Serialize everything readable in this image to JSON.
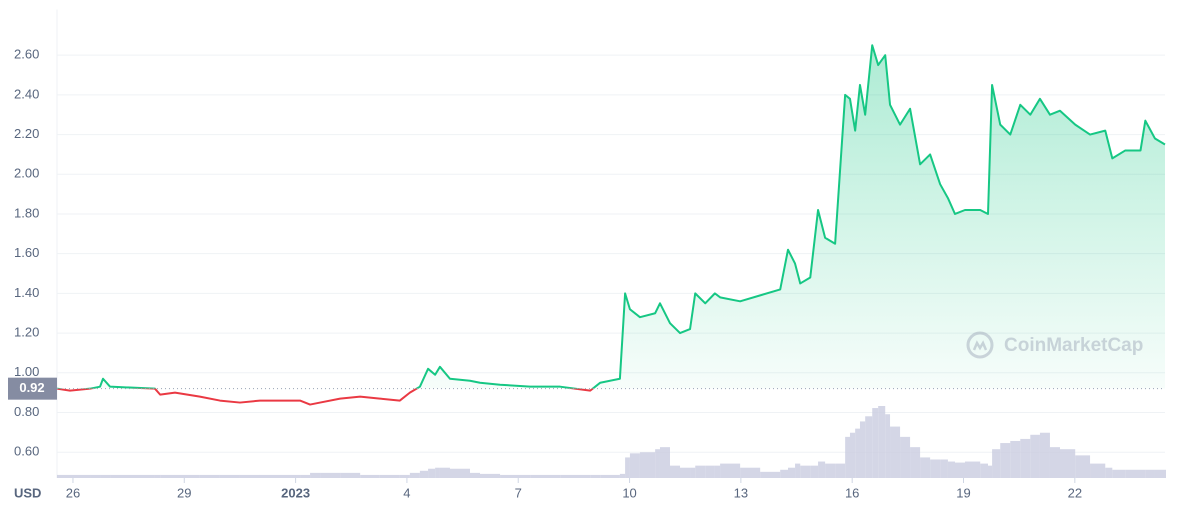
{
  "chart_data": {
    "type": "line",
    "color": "#16c784",
    "down_color": "#ea3943",
    "volume_color": "#c9cce0",
    "grid": true,
    "currency": "USD",
    "watermark": "CoinMarketCap",
    "baseline": {
      "value": 0.92,
      "label": "0.92"
    },
    "xlim": [
      -0.43,
      29.43
    ],
    "xticks": [
      {
        "value": 0,
        "label": "26"
      },
      {
        "value": 3,
        "label": "29"
      },
      {
        "value": 6,
        "label": "2023"
      },
      {
        "value": 9,
        "label": "4"
      },
      {
        "value": 12,
        "label": "7"
      },
      {
        "value": 15,
        "label": "10"
      },
      {
        "value": 18,
        "label": "13"
      },
      {
        "value": 21,
        "label": "16"
      },
      {
        "value": 24,
        "label": "19"
      },
      {
        "value": 27,
        "label": "22"
      }
    ],
    "ylim": [
      0.47,
      2.83
    ],
    "yticks": [
      {
        "value": 0.6,
        "label": "0.60"
      },
      {
        "value": 0.8,
        "label": "0.80"
      },
      {
        "value": 1.0,
        "label": "1.00"
      },
      {
        "value": 1.2,
        "label": "1.20"
      },
      {
        "value": 1.4,
        "label": "1.40"
      },
      {
        "value": 1.6,
        "label": "1.60"
      },
      {
        "value": 1.8,
        "label": "1.80"
      },
      {
        "value": 2.0,
        "label": "2.00"
      },
      {
        "value": 2.2,
        "label": "2.20"
      },
      {
        "value": 2.4,
        "label": "2.40"
      },
      {
        "value": 2.6,
        "label": "2.60"
      }
    ],
    "x": [
      -0.43,
      -0.08,
      0.46,
      0.73,
      0.81,
      1.0,
      2.21,
      2.35,
      2.75,
      3.42,
      3.96,
      4.5,
      5.04,
      6.12,
      6.39,
      6.66,
      7.2,
      7.74,
      8.27,
      8.81,
      9.08,
      9.35,
      9.57,
      9.76,
      9.89,
      10.16,
      10.7,
      10.97,
      11.51,
      12.32,
      13.13,
      13.94,
      14.21,
      14.74,
      14.88,
      15.01,
      15.28,
      15.69,
      15.82,
      16.09,
      16.36,
      16.63,
      16.77,
      17.04,
      17.3,
      17.44,
      17.98,
      18.52,
      19.06,
      19.27,
      19.46,
      19.6,
      19.87,
      20.08,
      20.27,
      20.54,
      20.81,
      20.94,
      21.08,
      21.21,
      21.35,
      21.54,
      21.7,
      21.89,
      22.02,
      22.29,
      22.56,
      22.83,
      23.1,
      23.37,
      23.58,
      23.77,
      24.04,
      24.45,
      24.66,
      24.77,
      24.99,
      25.26,
      25.53,
      25.8,
      26.06,
      26.33,
      26.6,
      27.01,
      27.41,
      27.82,
      28.01,
      28.36,
      28.77,
      28.9,
      29.16,
      29.43
    ],
    "values": [
      0.92,
      0.91,
      0.92,
      0.93,
      0.97,
      0.93,
      0.92,
      0.89,
      0.9,
      0.88,
      0.86,
      0.85,
      0.86,
      0.86,
      0.84,
      0.85,
      0.87,
      0.88,
      0.87,
      0.86,
      0.9,
      0.93,
      1.02,
      0.99,
      1.03,
      0.97,
      0.96,
      0.95,
      0.94,
      0.93,
      0.93,
      0.91,
      0.95,
      0.97,
      1.4,
      1.32,
      1.28,
      1.3,
      1.35,
      1.25,
      1.2,
      1.22,
      1.4,
      1.35,
      1.4,
      1.38,
      1.36,
      1.39,
      1.42,
      1.62,
      1.55,
      1.45,
      1.48,
      1.82,
      1.68,
      1.65,
      2.4,
      2.38,
      2.22,
      2.45,
      2.3,
      2.65,
      2.55,
      2.6,
      2.35,
      2.25,
      2.33,
      2.05,
      2.1,
      1.95,
      1.88,
      1.8,
      1.82,
      1.82,
      1.8,
      2.45,
      2.25,
      2.2,
      2.35,
      2.3,
      2.38,
      2.3,
      2.32,
      2.25,
      2.2,
      2.22,
      2.08,
      2.12,
      2.12,
      2.27,
      2.18,
      2.15
    ],
    "volume": [
      3,
      3,
      3,
      3,
      3,
      3,
      3,
      3,
      3,
      3,
      3,
      3,
      3,
      3,
      5,
      5,
      5,
      3,
      3,
      3,
      5,
      7,
      9,
      10,
      10,
      9,
      5,
      4,
      3,
      3,
      3,
      3,
      3,
      4,
      20,
      24,
      25,
      28,
      30,
      12,
      10,
      10,
      12,
      12,
      12,
      14,
      10,
      6,
      8,
      10,
      14,
      12,
      12,
      16,
      14,
      14,
      40,
      44,
      48,
      55,
      60,
      68,
      70,
      62,
      50,
      40,
      30,
      20,
      18,
      18,
      16,
      15,
      16,
      14,
      12,
      28,
      34,
      36,
      38,
      42,
      44,
      30,
      28,
      22,
      14,
      10,
      8,
      8,
      8,
      8,
      8,
      8
    ]
  }
}
